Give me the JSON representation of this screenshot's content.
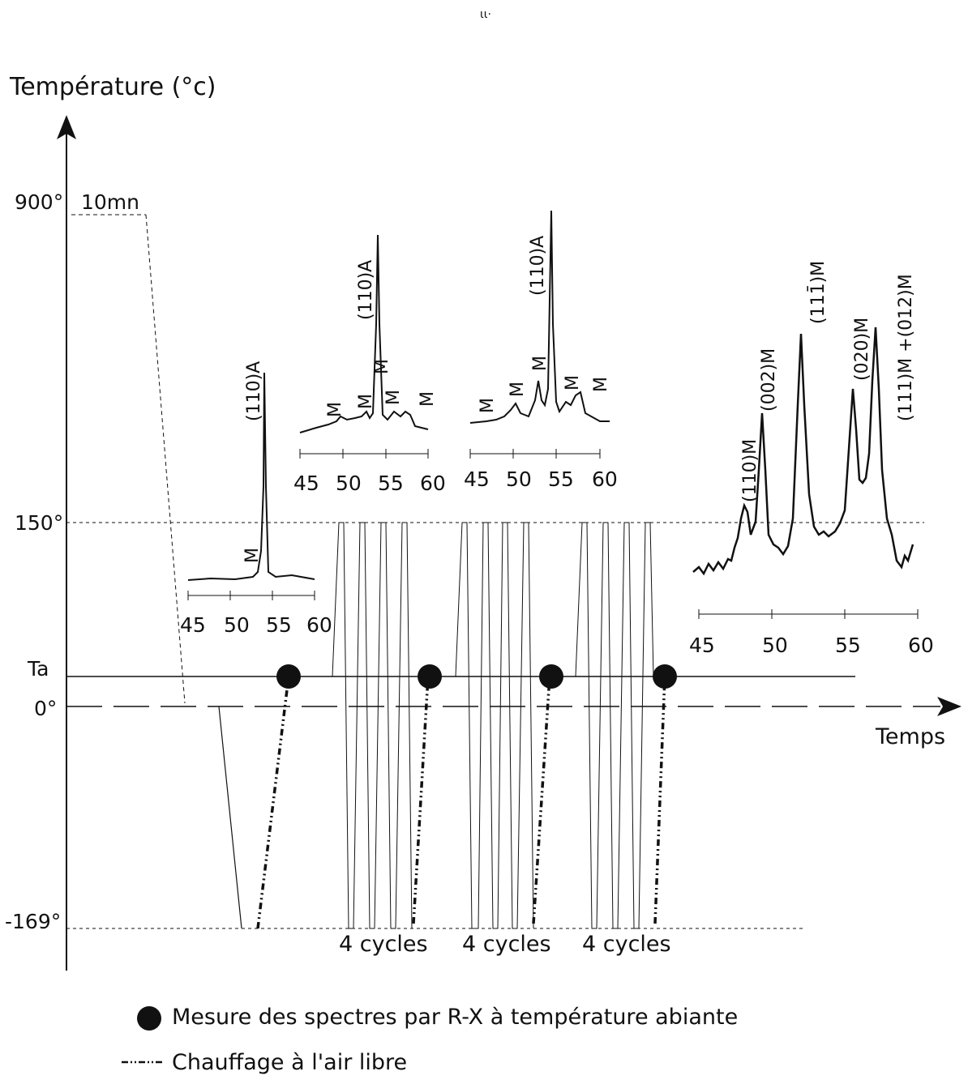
{
  "axes": {
    "y_label": "Température  (°c)",
    "x_label": "Temps",
    "y_ticks": [
      "900°",
      "150°",
      "Ta",
      "0°",
      "-169°"
    ],
    "hold_label": "10mn"
  },
  "cycles": {
    "labels": [
      "4 cycles",
      "4 cycles",
      "4 cycles"
    ]
  },
  "spectra": [
    {
      "ticks": [
        "45",
        "50",
        "55",
        "60"
      ],
      "peaks": [
        "(110)A",
        "M"
      ]
    },
    {
      "ticks": [
        "45",
        "50",
        "55",
        "60"
      ],
      "peaks": [
        "(110)A",
        "M",
        "M",
        "M",
        "M",
        "M"
      ]
    },
    {
      "ticks": [
        "45",
        "50",
        "55",
        "60"
      ],
      "peaks": [
        "(110)A",
        "M",
        "M",
        "M",
        "M",
        "M"
      ]
    },
    {
      "ticks": [
        "45",
        "50",
        "55",
        "60"
      ],
      "peaks": [
        "(110)M",
        "(002)M",
        "(111̄)M",
        "(020)M",
        "(111)M +(012)M"
      ]
    }
  ],
  "legend": {
    "measure": "Mesure des spectres par R-X à température abiante",
    "heating": "Chauffage à l'air libre"
  },
  "stray_mark": "ιι·"
}
